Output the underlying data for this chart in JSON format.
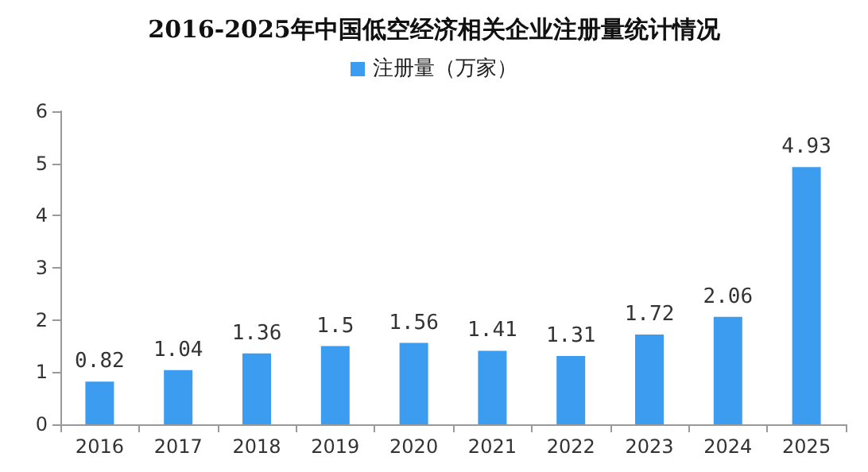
{
  "chart_data": {
    "type": "bar",
    "title": "2016-2025年中国低空经济相关企业注册量统计情况",
    "categories": [
      "2016",
      "2017",
      "2018",
      "2019",
      "2020",
      "2021",
      "2022",
      "2023",
      "2024",
      "2025"
    ],
    "series": [
      {
        "name": "注册量（万家）",
        "color": "#3c9cf0",
        "values": [
          0.82,
          1.04,
          1.36,
          1.5,
          1.56,
          1.41,
          1.31,
          1.72,
          2.06,
          4.93
        ]
      }
    ],
    "ylim": [
      0,
      6
    ],
    "yticks": [
      0,
      1,
      2,
      3,
      4,
      5,
      6
    ],
    "grid": false,
    "legend": "top",
    "data_labels": true
  }
}
